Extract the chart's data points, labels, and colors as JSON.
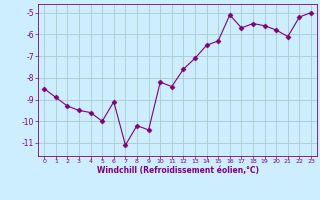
{
  "x": [
    0,
    1,
    2,
    3,
    4,
    5,
    6,
    7,
    8,
    9,
    10,
    11,
    12,
    13,
    14,
    15,
    16,
    17,
    18,
    19,
    20,
    21,
    22,
    23
  ],
  "y": [
    -8.5,
    -8.9,
    -9.3,
    -9.5,
    -9.6,
    -10.0,
    -9.1,
    -11.1,
    -10.2,
    -10.4,
    -8.2,
    -8.4,
    -7.6,
    -7.1,
    -6.5,
    -6.3,
    -5.1,
    -5.7,
    -5.5,
    -5.6,
    -5.8,
    -6.1,
    -5.2,
    -5.0
  ],
  "line_color": "#800080",
  "marker": "D",
  "marker_size": 2.5,
  "bg_color": "#cceeff",
  "grid_color": "#aacccc",
  "xlabel": "Windchill (Refroidissement éolien,°C)",
  "xlabel_color": "#800080",
  "tick_color": "#800080",
  "yticks": [
    -11,
    -10,
    -9,
    -8,
    -7,
    -6,
    -5
  ],
  "xticks": [
    0,
    1,
    2,
    3,
    4,
    5,
    6,
    7,
    8,
    9,
    10,
    11,
    12,
    13,
    14,
    15,
    16,
    17,
    18,
    19,
    20,
    21,
    22,
    23
  ],
  "ylim": [
    -11.6,
    -4.6
  ],
  "xlim": [
    -0.5,
    23.5
  ]
}
